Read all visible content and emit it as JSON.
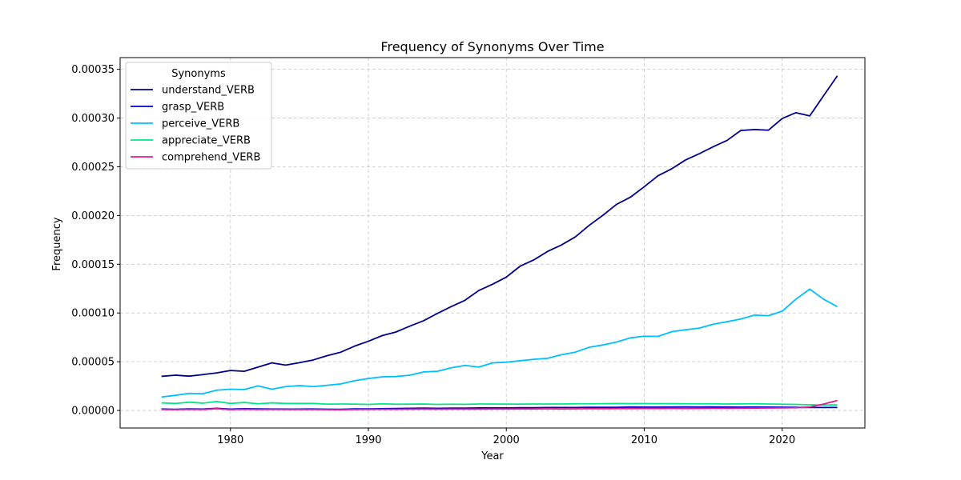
{
  "chart_data": {
    "type": "line",
    "title": "Frequency of Synonyms Over Time",
    "xlabel": "Year",
    "ylabel": "Frequency",
    "xlim": [
      1972,
      2026
    ],
    "ylim": [
      -1.8e-05,
      0.000362
    ],
    "x_ticks": [
      1980,
      1990,
      2000,
      2010,
      2020
    ],
    "x_tick_labels": [
      "1980",
      "1990",
      "2000",
      "2010",
      "2020"
    ],
    "y_ticks": [
      0,
      5e-05,
      0.0001,
      0.00015,
      0.0002,
      0.00025,
      0.0003,
      0.00035
    ],
    "y_tick_labels": [
      "0.00000",
      "0.00005",
      "0.00010",
      "0.00015",
      "0.00020",
      "0.00025",
      "0.00030",
      "0.00035"
    ],
    "grid": true,
    "legend": {
      "title": "Synonyms",
      "position": "top-left"
    },
    "x": [
      1975,
      1976,
      1977,
      1978,
      1979,
      1980,
      1981,
      1982,
      1983,
      1984,
      1985,
      1986,
      1987,
      1988,
      1989,
      1990,
      1991,
      1992,
      1993,
      1994,
      1995,
      1996,
      1997,
      1998,
      1999,
      2000,
      2001,
      2002,
      2003,
      2004,
      2005,
      2006,
      2007,
      2008,
      2009,
      2010,
      2011,
      2012,
      2013,
      2014,
      2015,
      2016,
      2017,
      2018,
      2019,
      2020,
      2021,
      2022,
      2023,
      2024
    ],
    "series": [
      {
        "name": "understand_VERB",
        "color": "#00008b",
        "values": [
          3.5e-05,
          3.62e-05,
          3.52e-05,
          3.68e-05,
          3.85e-05,
          4.1e-05,
          4.02e-05,
          4.45e-05,
          4.88e-05,
          4.65e-05,
          4.9e-05,
          5.18e-05,
          5.62e-05,
          5.98e-05,
          6.6e-05,
          7.1e-05,
          7.68e-05,
          8.05e-05,
          8.65e-05,
          9.2e-05,
          9.95e-05,
          0.0001065,
          0.000113,
          0.000123,
          0.0001295,
          0.0001368,
          0.000148,
          0.0001545,
          0.0001632,
          0.0001698,
          0.000178,
          0.0001898,
          0.0002002,
          0.0002115,
          0.0002188,
          0.0002295,
          0.0002408,
          0.000248,
          0.000257,
          0.0002635,
          0.0002705,
          0.000277,
          0.0002872,
          0.0002882,
          0.0002875,
          0.0002995,
          0.0003055,
          0.0003022,
          0.0003228,
          0.0003432
        ]
      },
      {
        "name": "grasp_VERB",
        "color": "#0000cd",
        "values": [
          1.5e-06,
          1.2e-06,
          1.6e-06,
          1.4e-06,
          2.2e-06,
          1.4e-06,
          1.8e-06,
          1.6e-06,
          1.5e-06,
          1.4e-06,
          1.4e-06,
          1.5e-06,
          1.3e-06,
          1.2e-06,
          1.6e-06,
          1.6e-06,
          1.8e-06,
          2e-06,
          2.2e-06,
          2.4e-06,
          2.2e-06,
          2.4e-06,
          2.4e-06,
          2.6e-06,
          2.7e-06,
          2.6e-06,
          2.8e-06,
          2.8e-06,
          3e-06,
          3e-06,
          3e-06,
          3.2e-06,
          3.2e-06,
          3.2e-06,
          3.5e-06,
          3.4e-06,
          3.4e-06,
          3.5e-06,
          3.6e-06,
          3.5e-06,
          3.6e-06,
          3.5e-06,
          3.4e-06,
          3.5e-06,
          3.4e-06,
          3.3e-06,
          3.2e-06,
          3e-06,
          3e-06,
          3e-06
        ]
      },
      {
        "name": "perceive_VERB",
        "color": "#00bfff",
        "values": [
          1.38e-05,
          1.55e-05,
          1.75e-05,
          1.72e-05,
          2.08e-05,
          2.18e-05,
          2.15e-05,
          2.52e-05,
          2.18e-05,
          2.45e-05,
          2.55e-05,
          2.45e-05,
          2.58e-05,
          2.72e-05,
          3.05e-05,
          3.28e-05,
          3.45e-05,
          3.48e-05,
          3.62e-05,
          3.95e-05,
          4.02e-05,
          4.38e-05,
          4.62e-05,
          4.45e-05,
          4.88e-05,
          4.95e-05,
          5.1e-05,
          5.25e-05,
          5.35e-05,
          5.72e-05,
          5.98e-05,
          6.48e-05,
          6.72e-05,
          7.02e-05,
          7.45e-05,
          7.62e-05,
          7.6e-05,
          8.08e-05,
          8.28e-05,
          8.45e-05,
          8.85e-05,
          9.1e-05,
          9.38e-05,
          9.78e-05,
          9.72e-05,
          0.0001018,
          0.0001142,
          0.0001245,
          0.0001142,
          0.0001065
        ]
      },
      {
        "name": "appreciate_VERB",
        "color": "#00e68a",
        "values": [
          7.8e-06,
          7.2e-06,
          8.5e-06,
          7.5e-06,
          9.2e-06,
          7.2e-06,
          8.2e-06,
          6.8e-06,
          7.8e-06,
          7.2e-06,
          7.2e-06,
          7.2e-06,
          6.5e-06,
          6.6e-06,
          6.5e-06,
          6.2e-06,
          6.8e-06,
          6.4e-06,
          6.5e-06,
          6.6e-06,
          6.2e-06,
          6.4e-06,
          6.3e-06,
          6.6e-06,
          6.6e-06,
          6.5e-06,
          6.5e-06,
          6.6e-06,
          6.6e-06,
          6.6e-06,
          6.8e-06,
          6.8e-06,
          6.9e-06,
          7.1e-06,
          7e-06,
          7.1e-06,
          6.9e-06,
          7e-06,
          6.8e-06,
          6.8e-06,
          6.8e-06,
          6.6e-06,
          6.7e-06,
          6.8e-06,
          6.6e-06,
          6.4e-06,
          6.2e-06,
          5.8e-06,
          5.6e-06,
          5.8e-06
        ]
      },
      {
        "name": "comprehend_VERB",
        "color": "#e6198c",
        "values": [
          1e-06,
          9e-07,
          1.1e-06,
          1e-06,
          1.8e-06,
          9e-07,
          1.2e-06,
          1e-06,
          1.1e-06,
          1e-06,
          1e-06,
          1e-06,
          9e-07,
          8e-07,
          1e-06,
          1.1e-06,
          1.2e-06,
          1.2e-06,
          1.3e-06,
          1.4e-06,
          1.3e-06,
          1.4e-06,
          1.4e-06,
          1.4e-06,
          1.5e-06,
          1.5e-06,
          1.6e-06,
          1.6e-06,
          1.7e-06,
          1.6e-06,
          1.7e-06,
          1.8e-06,
          1.8e-06,
          1.9e-06,
          1.9e-06,
          2e-06,
          2e-06,
          2.1e-06,
          2e-06,
          2.1e-06,
          2.2e-06,
          2.2e-06,
          2.3e-06,
          2.4e-06,
          2.5e-06,
          2.6e-06,
          2.8e-06,
          3.5e-06,
          6.5e-06,
          1.02e-05
        ]
      }
    ]
  }
}
